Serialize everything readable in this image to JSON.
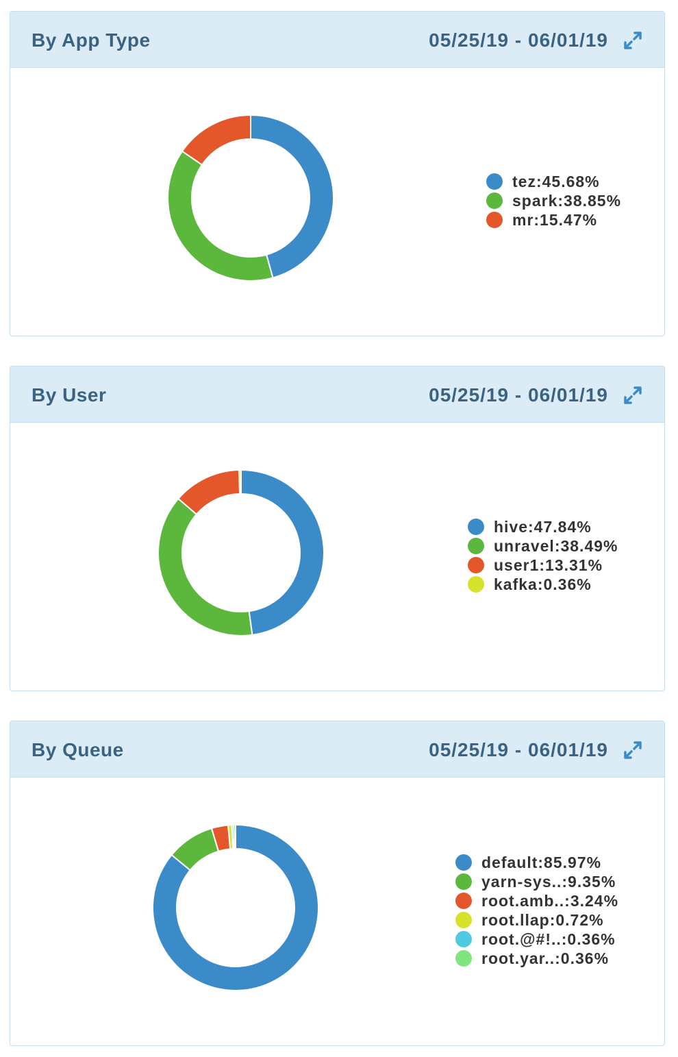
{
  "chart_data": [
    {
      "type": "pie",
      "title": "By App Type",
      "date_range": "05/25/19 - 06/01/19",
      "categories": [
        "tez",
        "spark",
        "mr"
      ],
      "values": [
        45.68,
        38.85,
        15.47
      ],
      "colors": [
        "#3b8bc9",
        "#5bb83c",
        "#e4572a"
      ],
      "legend": [
        "tez:45.68%",
        "spark:38.85%",
        "mr:15.47%"
      ],
      "legend_position": "right"
    },
    {
      "type": "pie",
      "title": "By User",
      "date_range": "05/25/19 - 06/01/19",
      "categories": [
        "hive",
        "unravel",
        "user1",
        "kafka"
      ],
      "values": [
        47.84,
        38.49,
        13.31,
        0.36
      ],
      "colors": [
        "#3b8bc9",
        "#5bb83c",
        "#e4572a",
        "#d7e22b"
      ],
      "legend": [
        "hive:47.84%",
        "unravel:38.49%",
        "user1:13.31%",
        "kafka:0.36%"
      ],
      "legend_position": "right"
    },
    {
      "type": "pie",
      "title": "By Queue",
      "date_range": "05/25/19 - 06/01/19",
      "categories": [
        "default",
        "yarn-sys..",
        "root.amb..",
        "root.llap",
        "root.@#!..",
        "root.yar.."
      ],
      "values": [
        85.97,
        9.35,
        3.24,
        0.72,
        0.36,
        0.36
      ],
      "colors": [
        "#3b8bc9",
        "#5bb83c",
        "#e4572a",
        "#d7e22b",
        "#4fcbe0",
        "#7fe67f"
      ],
      "legend": [
        "default:85.97%",
        "yarn-sys..:9.35%",
        "root.amb..:3.24%",
        "root.llap:0.72%",
        "root.@#!..:0.36%",
        "root.yar..:0.36%"
      ],
      "legend_position": "right"
    }
  ]
}
